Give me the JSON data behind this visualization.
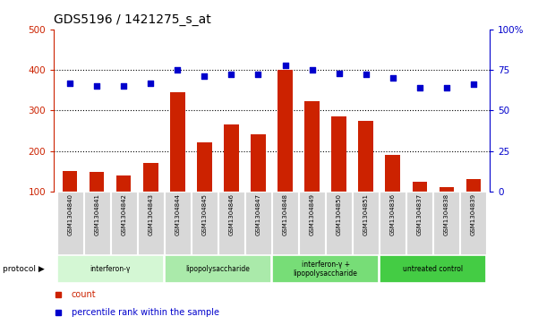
{
  "title": "GDS5196 / 1421275_s_at",
  "samples": [
    "GSM1304840",
    "GSM1304841",
    "GSM1304842",
    "GSM1304843",
    "GSM1304844",
    "GSM1304845",
    "GSM1304846",
    "GSM1304847",
    "GSM1304848",
    "GSM1304849",
    "GSM1304850",
    "GSM1304851",
    "GSM1304836",
    "GSM1304837",
    "GSM1304838",
    "GSM1304839"
  ],
  "counts": [
    152,
    148,
    140,
    172,
    345,
    222,
    265,
    242,
    400,
    322,
    285,
    275,
    190,
    125,
    112,
    132
  ],
  "percentile_ranks": [
    67,
    65,
    65,
    67,
    75,
    71,
    72,
    72,
    78,
    75,
    73,
    72,
    70,
    64,
    64,
    66
  ],
  "ylim_left": [
    100,
    500
  ],
  "ylim_right": [
    0,
    100
  ],
  "bar_color": "#cc2200",
  "scatter_color": "#0000cc",
  "title_fontsize": 10,
  "sample_box_color": "#d8d8d8",
  "proto_groups": [
    {
      "label": "interferon-γ",
      "start": 0,
      "end": 4,
      "color": "#d4f7d4"
    },
    {
      "label": "lipopolysaccharide",
      "start": 4,
      "end": 8,
      "color": "#aaeaaa"
    },
    {
      "label": "interferon-γ +\nlipopolysaccharide",
      "start": 8,
      "end": 12,
      "color": "#77dd77"
    },
    {
      "label": "untreated control",
      "start": 12,
      "end": 16,
      "color": "#44cc44"
    }
  ],
  "legend_count_label": "count",
  "legend_pct_label": "percentile rank within the sample",
  "protocol_label": "protocol"
}
